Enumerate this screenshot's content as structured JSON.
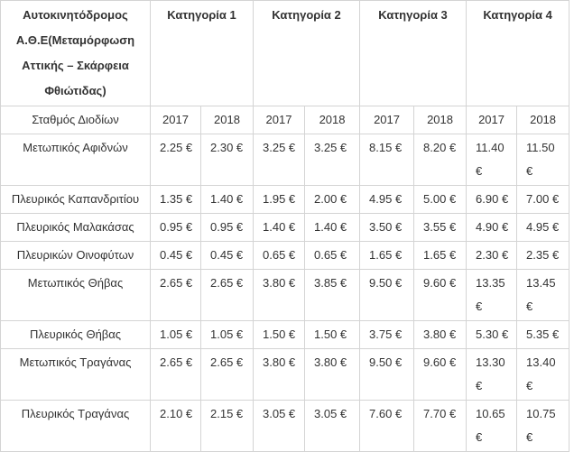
{
  "table": {
    "header": {
      "title": "Αυτοκινητόδρομος Α.Θ.Ε(Μεταμόρφωση Αττικής – Σκάρφεια Φθιώτιδας)",
      "categories": [
        "Κατηγορία 1",
        "Κατηγορία 2",
        "Κατηγορία 3",
        "Κατηγορία 4"
      ]
    },
    "subheader": {
      "label": "Σταθμός Διοδίων",
      "years": [
        "2017",
        "2018",
        "2017",
        "2018",
        "2017",
        "2018",
        "2017",
        "2018"
      ]
    },
    "rows": [
      {
        "station": "Μετωπικός Αφιδνών",
        "prices": [
          "2.25 €",
          "2.30 €",
          "3.25 €",
          "3.25 €",
          "8.15 €",
          "8.20 €",
          "11.40 €",
          "11.50 €"
        ]
      },
      {
        "station": "Πλευρικός Καπανδριτίου",
        "prices": [
          "1.35 €",
          "1.40 €",
          "1.95 €",
          "2.00 €",
          "4.95 €",
          "5.00 €",
          "6.90 €",
          "7.00 €"
        ]
      },
      {
        "station": "Πλευρικός Μαλακάσας",
        "prices": [
          "0.95 €",
          "0.95 €",
          "1.40 €",
          "1.40 €",
          "3.50 €",
          "3.55 €",
          "4.90 €",
          "4.95 €"
        ]
      },
      {
        "station": "Πλευρικών Οινοφύτων",
        "prices": [
          "0.45 €",
          "0.45 €",
          "0.65 €",
          "0.65 €",
          "1.65 €",
          "1.65 €",
          "2.30 €",
          "2.35 €"
        ]
      },
      {
        "station": "Μετωπικός Θήβας",
        "prices": [
          "2.65 €",
          "2.65 €",
          "3.80 €",
          "3.85 €",
          "9.50 €",
          "9.60 €",
          "13.35 €",
          "13.45 €"
        ]
      },
      {
        "station": "Πλευρικός Θήβας",
        "prices": [
          "1.05 €",
          "1.05 €",
          "1.50 €",
          "1.50 €",
          "3.75 €",
          "3.80 €",
          "5.30 €",
          "5.35 €"
        ]
      },
      {
        "station": "Μετωπικός Τραγάνας",
        "prices": [
          "2.65 €",
          "2.65 €",
          "3.80 €",
          "3.80 €",
          "9.50 €",
          "9.60 €",
          "13.30 €",
          "13.40 €"
        ]
      },
      {
        "station": "Πλευρικός Τραγάνας",
        "prices": [
          "2.10 €",
          "2.15 €",
          "3.05 €",
          "3.05 €",
          "7.60 €",
          "7.70 €",
          "10.65 €",
          "10.75 €"
        ]
      }
    ]
  }
}
